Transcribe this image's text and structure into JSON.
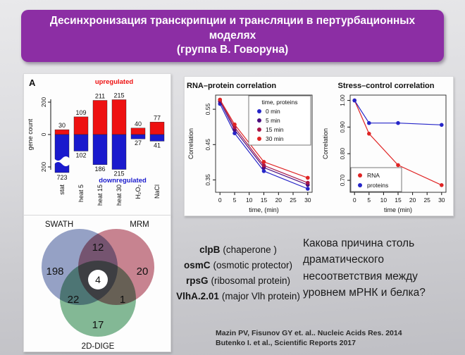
{
  "slide": {
    "header": {
      "title": "Десинхронизация транскрипции и трансляции в пертурбационных моделях",
      "subtitle": "(группа В. Говоруна)",
      "bg_color": "#8c2ea4",
      "text_color": "#ffffff"
    },
    "question": "Какова причина столь драматического несоответствия между уровнем мРНК и белка?",
    "gene_list": {
      "items": [
        {
          "name": "clpB",
          "desc": "(chaperone )"
        },
        {
          "name": "osmC",
          "desc": "(osmotic protector)"
        },
        {
          "name": "rpsG",
          "desc": "(ribosomal protein)"
        },
        {
          "name": "VlhA.2.01",
          "desc": "(major Vlh protein)"
        }
      ]
    },
    "citations": [
      "Mazin PV, Fisunov GY et. al.. Nucleic Acids Res. 2014",
      "Butenko I. et al., Scientific Reports 2017"
    ]
  },
  "chart_data": [
    {
      "id": "gene-count-bars",
      "type": "bar",
      "panel_label": "A",
      "title": "",
      "categories": [
        "stat",
        "heat 5",
        "heat 15",
        "heat 30",
        "H₂O₂",
        "NaCl"
      ],
      "series": [
        {
          "name": "upregulated",
          "color": "#ee1111",
          "values": [
            30,
            109,
            211,
            215,
            40,
            77
          ]
        },
        {
          "name": "downregulated",
          "color": "#1a1acd",
          "values": [
            723,
            102,
            186,
            215,
            27,
            41
          ]
        }
      ],
      "ylabel": "gene count",
      "yticks": [
        "200",
        "0",
        "200"
      ],
      "axis_break_category": "stat",
      "up_label": "upregulated",
      "down_label": "downregulated"
    },
    {
      "id": "rna-protein-correlation",
      "type": "line",
      "title": "RNA–protein correlation",
      "x": [
        0,
        5,
        15,
        30
      ],
      "series": [
        {
          "name": "0 min",
          "color": "#2525c8",
          "values": [
            0.565,
            0.482,
            0.375,
            0.325
          ]
        },
        {
          "name": "5 min",
          "color": "#4b0d7e",
          "values": [
            0.572,
            0.492,
            0.385,
            0.336
          ]
        },
        {
          "name": "15 min",
          "color": "#a81648",
          "values": [
            0.577,
            0.499,
            0.391,
            0.342
          ]
        },
        {
          "name": "30 min",
          "color": "#e02424",
          "values": [
            0.577,
            0.507,
            0.401,
            0.356
          ]
        }
      ],
      "xlabel": "time,  (min)",
      "ylabel": "Correlation",
      "xticks": [
        0,
        5,
        10,
        15,
        20,
        25,
        30
      ],
      "yticks": [
        0.35,
        0.45,
        0.55
      ],
      "ytick_labels": [
        "0.35",
        "0.45",
        "0.55"
      ],
      "xlim": [
        -1.5,
        31.5
      ],
      "ylim": [
        0.315,
        0.59
      ],
      "legend": {
        "title": "time, proteins",
        "position": "top-right"
      }
    },
    {
      "id": "stress-control-correlation",
      "type": "line",
      "title": "Stress–control correlation",
      "x": [
        0,
        5,
        15,
        30
      ],
      "series": [
        {
          "name": "RNA",
          "color": "#e02424",
          "values": [
            1.0,
            0.875,
            0.757,
            0.682
          ]
        },
        {
          "name": "proteins",
          "color": "#2525c8",
          "values": [
            1.0,
            0.915,
            0.915,
            0.908
          ]
        }
      ],
      "xlabel": "time (min)",
      "ylabel": "Correlation",
      "xticks": [
        0,
        5,
        10,
        15,
        20,
        25,
        30
      ],
      "yticks": [
        0.7,
        0.8,
        0.9,
        1.0
      ],
      "ytick_labels": [
        "0.70",
        "0.80",
        "0.90",
        "1.00"
      ],
      "xlim": [
        -1.5,
        31.5
      ],
      "ylim": [
        0.655,
        1.02
      ],
      "legend": {
        "title": "",
        "position": "bottom-left"
      }
    },
    {
      "id": "proteomics-venn",
      "type": "venn",
      "sets": [
        {
          "name": "SWATH",
          "color": "#8492bd",
          "only": 198
        },
        {
          "name": "MRM",
          "color": "#c06f7e",
          "only": 20
        },
        {
          "name": "2D-DIGE",
          "color": "#6fae84",
          "only": 17
        }
      ],
      "overlaps": [
        {
          "between": [
            "SWATH",
            "MRM"
          ],
          "value": 12
        },
        {
          "between": [
            "SWATH",
            "2D-DIGE"
          ],
          "value": 22
        },
        {
          "between": [
            "MRM",
            "2D-DIGE"
          ],
          "value": 1
        },
        {
          "between": [
            "SWATH",
            "MRM",
            "2D-DIGE"
          ],
          "value": 4
        }
      ]
    }
  ]
}
